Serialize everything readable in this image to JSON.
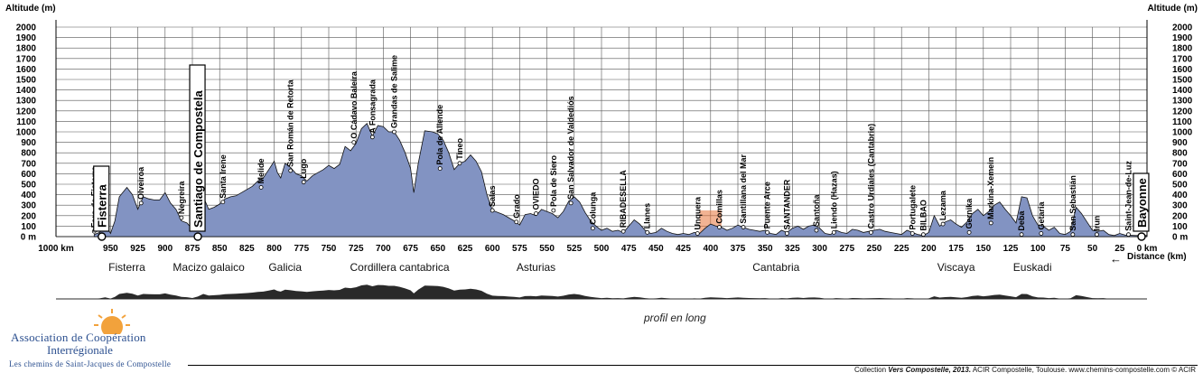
{
  "chart_data": {
    "type": "area",
    "ylabel_left": "Altitude (m)",
    "ylabel_right": "Altitude (m)",
    "xlabel": "Distance (km)",
    "x_reversed": true,
    "xlim": [
      0,
      1000
    ],
    "ylim": [
      0,
      2000
    ],
    "y_ticks": [
      0,
      100,
      200,
      300,
      400,
      500,
      600,
      700,
      800,
      900,
      1000,
      1100,
      1200,
      1300,
      1400,
      1500,
      1600,
      1700,
      1800,
      1900,
      2000
    ],
    "y_tick_labels": [
      "0 m",
      "100",
      "200",
      "300",
      "400",
      "500",
      "600",
      "700",
      "800",
      "900",
      "1000",
      "1100",
      "1200",
      "1300",
      "1400",
      "1500",
      "1600",
      "1700",
      "1800",
      "1900",
      "2000"
    ],
    "x_ticks": [
      1000,
      950,
      925,
      900,
      875,
      850,
      825,
      800,
      775,
      750,
      725,
      700,
      675,
      650,
      625,
      600,
      575,
      550,
      525,
      500,
      475,
      450,
      425,
      400,
      375,
      350,
      325,
      300,
      275,
      250,
      225,
      200,
      175,
      150,
      125,
      100,
      75,
      50,
      25,
      0
    ],
    "x_tick_labels": [
      "1000 km",
      "950",
      "925",
      "900",
      "875",
      "850",
      "825",
      "800",
      "775",
      "750",
      "725",
      "700",
      "675",
      "650",
      "625",
      "600",
      "575",
      "550",
      "525",
      "500",
      "475",
      "450",
      "425",
      "400",
      "375",
      "350",
      "325",
      "300",
      "275",
      "250",
      "225",
      "200",
      "175",
      "150",
      "125",
      "100",
      "75",
      "50",
      "25",
      "0 km"
    ],
    "grid": true,
    "fill_color": "#8293c2",
    "line_color": "#111111",
    "highlight_color": "#e8743b",
    "profile": [
      [
        965,
        20
      ],
      [
        960,
        40
      ],
      [
        955,
        120
      ],
      [
        950,
        30
      ],
      [
        946,
        150
      ],
      [
        942,
        380
      ],
      [
        935,
        470
      ],
      [
        930,
        400
      ],
      [
        925,
        260
      ],
      [
        920,
        380
      ],
      [
        915,
        360
      ],
      [
        910,
        350
      ],
      [
        905,
        350
      ],
      [
        900,
        420
      ],
      [
        895,
        320
      ],
      [
        890,
        260
      ],
      [
        885,
        150
      ],
      [
        880,
        130
      ],
      [
        875,
        70
      ],
      [
        870,
        180
      ],
      [
        865,
        380
      ],
      [
        860,
        260
      ],
      [
        855,
        280
      ],
      [
        850,
        310
      ],
      [
        845,
        360
      ],
      [
        840,
        380
      ],
      [
        835,
        390
      ],
      [
        830,
        420
      ],
      [
        825,
        450
      ],
      [
        820,
        480
      ],
      [
        815,
        530
      ],
      [
        810,
        560
      ],
      [
        805,
        640
      ],
      [
        800,
        720
      ],
      [
        797,
        610
      ],
      [
        794,
        560
      ],
      [
        790,
        700
      ],
      [
        785,
        660
      ],
      [
        780,
        600
      ],
      [
        775,
        580
      ],
      [
        770,
        530
      ],
      [
        765,
        580
      ],
      [
        760,
        610
      ],
      [
        755,
        640
      ],
      [
        750,
        680
      ],
      [
        745,
        650
      ],
      [
        740,
        690
      ],
      [
        735,
        860
      ],
      [
        730,
        820
      ],
      [
        725,
        890
      ],
      [
        720,
        1030
      ],
      [
        715,
        1080
      ],
      [
        710,
        960
      ],
      [
        705,
        1060
      ],
      [
        700,
        1050
      ],
      [
        695,
        1000
      ],
      [
        690,
        1000
      ],
      [
        685,
        920
      ],
      [
        680,
        800
      ],
      [
        675,
        650
      ],
      [
        672,
        420
      ],
      [
        668,
        700
      ],
      [
        662,
        1010
      ],
      [
        655,
        1000
      ],
      [
        650,
        980
      ],
      [
        645,
        920
      ],
      [
        640,
        800
      ],
      [
        635,
        640
      ],
      [
        630,
        700
      ],
      [
        625,
        720
      ],
      [
        620,
        780
      ],
      [
        615,
        720
      ],
      [
        610,
        620
      ],
      [
        605,
        400
      ],
      [
        600,
        250
      ],
      [
        595,
        230
      ],
      [
        590,
        210
      ],
      [
        585,
        180
      ],
      [
        580,
        150
      ],
      [
        575,
        110
      ],
      [
        570,
        210
      ],
      [
        565,
        220
      ],
      [
        560,
        200
      ],
      [
        555,
        260
      ],
      [
        550,
        240
      ],
      [
        545,
        220
      ],
      [
        540,
        180
      ],
      [
        535,
        240
      ],
      [
        530,
        340
      ],
      [
        525,
        380
      ],
      [
        520,
        330
      ],
      [
        515,
        230
      ],
      [
        510,
        150
      ],
      [
        505,
        100
      ],
      [
        500,
        60
      ],
      [
        495,
        80
      ],
      [
        490,
        50
      ],
      [
        485,
        60
      ],
      [
        480,
        40
      ],
      [
        475,
        100
      ],
      [
        470,
        160
      ],
      [
        465,
        120
      ],
      [
        460,
        60
      ],
      [
        455,
        30
      ],
      [
        450,
        40
      ],
      [
        445,
        80
      ],
      [
        440,
        50
      ],
      [
        435,
        30
      ],
      [
        430,
        20
      ],
      [
        425,
        30
      ],
      [
        420,
        20
      ],
      [
        415,
        40
      ],
      [
        410,
        30
      ],
      [
        405,
        80
      ],
      [
        400,
        120
      ],
      [
        395,
        100
      ],
      [
        390,
        90
      ],
      [
        385,
        60
      ],
      [
        380,
        80
      ],
      [
        375,
        110
      ],
      [
        370,
        90
      ],
      [
        365,
        70
      ],
      [
        360,
        60
      ],
      [
        355,
        50
      ],
      [
        350,
        60
      ],
      [
        345,
        30
      ],
      [
        340,
        20
      ],
      [
        335,
        60
      ],
      [
        330,
        40
      ],
      [
        325,
        80
      ],
      [
        320,
        100
      ],
      [
        315,
        70
      ],
      [
        310,
        100
      ],
      [
        305,
        110
      ],
      [
        300,
        80
      ],
      [
        295,
        30
      ],
      [
        290,
        20
      ],
      [
        285,
        60
      ],
      [
        280,
        40
      ],
      [
        275,
        30
      ],
      [
        270,
        70
      ],
      [
        265,
        60
      ],
      [
        260,
        40
      ],
      [
        255,
        50
      ],
      [
        250,
        60
      ],
      [
        245,
        70
      ],
      [
        240,
        50
      ],
      [
        235,
        40
      ],
      [
        230,
        30
      ],
      [
        225,
        20
      ],
      [
        220,
        60
      ],
      [
        215,
        40
      ],
      [
        210,
        20
      ],
      [
        205,
        10
      ],
      [
        200,
        40
      ],
      [
        195,
        200
      ],
      [
        190,
        100
      ],
      [
        185,
        140
      ],
      [
        180,
        160
      ],
      [
        175,
        120
      ],
      [
        170,
        90
      ],
      [
        165,
        140
      ],
      [
        160,
        220
      ],
      [
        155,
        260
      ],
      [
        150,
        200
      ],
      [
        145,
        240
      ],
      [
        140,
        300
      ],
      [
        135,
        330
      ],
      [
        130,
        260
      ],
      [
        125,
        200
      ],
      [
        120,
        130
      ],
      [
        115,
        380
      ],
      [
        110,
        370
      ],
      [
        105,
        200
      ],
      [
        100,
        110
      ],
      [
        95,
        100
      ],
      [
        90,
        60
      ],
      [
        85,
        90
      ],
      [
        80,
        30
      ],
      [
        75,
        20
      ],
      [
        70,
        50
      ],
      [
        65,
        280
      ],
      [
        60,
        220
      ],
      [
        55,
        140
      ],
      [
        50,
        60
      ],
      [
        45,
        50
      ],
      [
        40,
        60
      ],
      [
        35,
        20
      ],
      [
        30,
        10
      ],
      [
        25,
        30
      ],
      [
        20,
        15
      ],
      [
        10,
        10
      ],
      [
        0,
        10
      ]
    ],
    "highlight_range": [
      390,
      410
    ],
    "major_places": [
      {
        "name": "Fisterra",
        "km": 958
      },
      {
        "name": "Santiago de Compostela",
        "km": 870
      },
      {
        "name": "Bayonne",
        "km": 5
      }
    ],
    "towns": [
      {
        "name": "Faro de Fisterra",
        "km": 965,
        "alt": 50
      },
      {
        "name": "Olveiroa",
        "km": 922,
        "alt": 320
      },
      {
        "name": "Negreira",
        "km": 885,
        "alt": 180
      },
      {
        "name": "Santa Irene",
        "km": 847,
        "alt": 330
      },
      {
        "name": "Melide",
        "km": 812,
        "alt": 470
      },
      {
        "name": "Lugo",
        "km": 773,
        "alt": 520
      },
      {
        "name": "San Román de Retorta",
        "km": 785,
        "alt": 630
      },
      {
        "name": "O Cádavo Baleira",
        "km": 727,
        "alt": 900
      },
      {
        "name": "A Fonsagrada",
        "km": 710,
        "alt": 950
      },
      {
        "name": "Grandas de Salime",
        "km": 690,
        "alt": 1000
      },
      {
        "name": "Pola de Allende",
        "km": 648,
        "alt": 650
      },
      {
        "name": "Tineo",
        "km": 630,
        "alt": 700
      },
      {
        "name": "Salas",
        "km": 600,
        "alt": 250
      },
      {
        "name": "Grado",
        "km": 578,
        "alt": 140
      },
      {
        "name": "OVIEDO",
        "km": 560,
        "alt": 220
      },
      {
        "name": "Pola de Siero",
        "km": 544,
        "alt": 250
      },
      {
        "name": "San Salvador de Valdediós",
        "km": 528,
        "alt": 320
      },
      {
        "name": "Colunga",
        "km": 508,
        "alt": 80
      },
      {
        "name": "RIBADESELLA",
        "km": 480,
        "alt": 50
      },
      {
        "name": "Llanes",
        "km": 458,
        "alt": 40
      },
      {
        "name": "Unquera",
        "km": 412,
        "alt": 30
      },
      {
        "name": "Comillas",
        "km": 392,
        "alt": 90
      },
      {
        "name": "Santillana del Mar",
        "km": 370,
        "alt": 90
      },
      {
        "name": "Puente Arce",
        "km": 348,
        "alt": 40
      },
      {
        "name": "SANTANDER",
        "km": 330,
        "alt": 30
      },
      {
        "name": "Santoña",
        "km": 303,
        "alt": 60
      },
      {
        "name": "Liendo (Hazas)",
        "km": 287,
        "alt": 40
      },
      {
        "name": "Castro Urdiales (Cantabrie)",
        "km": 253,
        "alt": 40
      },
      {
        "name": "Portugalete",
        "km": 215,
        "alt": 30
      },
      {
        "name": "BILBAO",
        "km": 205,
        "alt": 20
      },
      {
        "name": "Lezama",
        "km": 187,
        "alt": 120
      },
      {
        "name": "Gernika",
        "km": 163,
        "alt": 40
      },
      {
        "name": "Markina-Xemein",
        "km": 143,
        "alt": 130
      },
      {
        "name": "Deba",
        "km": 115,
        "alt": 20
      },
      {
        "name": "Getaria",
        "km": 97,
        "alt": 30
      },
      {
        "name": "San Sebastián",
        "km": 68,
        "alt": 20
      },
      {
        "name": "Irun",
        "km": 46,
        "alt": 20
      },
      {
        "name": "Saint-Jean-de-Luz",
        "km": 17,
        "alt": 20
      }
    ],
    "regions": [
      {
        "name": "Fisterra",
        "km": 935
      },
      {
        "name": "Macizo galaico",
        "km": 860
      },
      {
        "name": "Galicia",
        "km": 790
      },
      {
        "name": "Cordillera cantabrica",
        "km": 685
      },
      {
        "name": "Asturias",
        "km": 560
      },
      {
        "name": "Cantabria",
        "km": 340
      },
      {
        "name": "Viscaya",
        "km": 175
      },
      {
        "name": "Euskadi",
        "km": 105
      }
    ]
  },
  "labels": {
    "altitude_left": "Altitude (m)",
    "altitude_right": "Altitude (m)",
    "km_title": "1000 km",
    "distance": "Distance (km)",
    "distance_arrow": "←",
    "profile_caption": "profil en long"
  },
  "logo": {
    "line1": "Association de Coopération",
    "line2": "Interrégionale",
    "line3": "Les chemins de Saint-Jacques de Compostelle"
  },
  "credit": {
    "prefix": "Collection ",
    "series": "Vers Compostelle, 2013.",
    "rest": " ACIR Compostelle, Toulouse. www.chemins-compostelle.com © ACIR"
  }
}
